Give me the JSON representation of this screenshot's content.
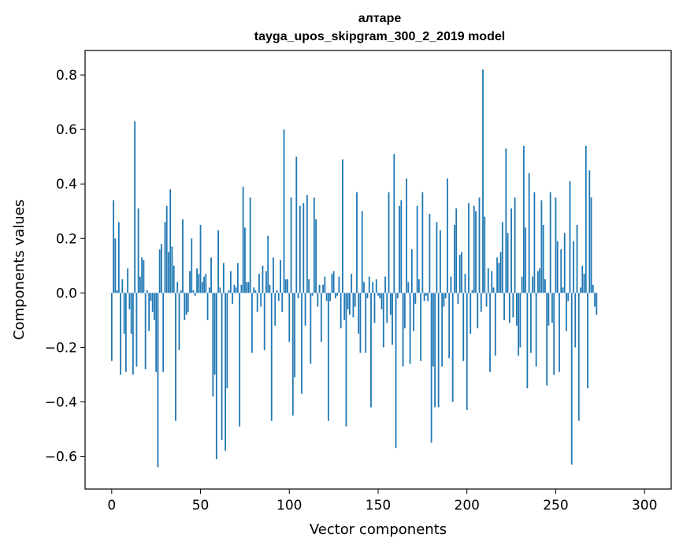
{
  "chart_data": {
    "type": "bar",
    "title": "алтаре",
    "subtitle": "tayga_upos_skipgram_300_2_2019 model",
    "xlabel": "Vector components",
    "ylabel": "Components values",
    "xlim": [
      -15,
      315
    ],
    "ylim": [
      -0.72,
      0.89
    ],
    "xticks": [
      0,
      50,
      100,
      150,
      200,
      250,
      300
    ],
    "yticks": [
      -0.6,
      -0.4,
      -0.2,
      0.0,
      0.2,
      0.4,
      0.6,
      0.8
    ],
    "ytick_labels": [
      "−0.6",
      "−0.4",
      "−0.2",
      "0.0",
      "0.2",
      "0.4",
      "0.6",
      "0.8"
    ],
    "xtick_labels": [
      "0",
      "50",
      "100",
      "150",
      "200",
      "250",
      "300"
    ],
    "bar_color": "#1f77b4",
    "grid": false,
    "values": [
      -0.25,
      0.34,
      0.2,
      0.01,
      0.26,
      -0.3,
      0.05,
      -0.15,
      -0.29,
      0.09,
      -0.06,
      -0.15,
      -0.3,
      0.63,
      -0.27,
      0.31,
      0.06,
      0.13,
      0.12,
      -0.28,
      0.01,
      -0.14,
      -0.03,
      -0.07,
      -0.1,
      -0.29,
      -0.64,
      0.16,
      0.18,
      -0.29,
      0.26,
      0.32,
      0.15,
      0.38,
      0.17,
      0.1,
      -0.47,
      0.04,
      -0.21,
      0.01,
      0.27,
      -0.1,
      -0.08,
      -0.07,
      0.08,
      0.2,
      0.01,
      -0.01,
      0.09,
      0.07,
      0.25,
      0.04,
      0.06,
      0.07,
      -0.1,
      0.02,
      0.13,
      -0.38,
      -0.3,
      -0.61,
      0.23,
      0.02,
      -0.54,
      0.11,
      -0.58,
      -0.35,
      0.01,
      0.08,
      -0.04,
      0.03,
      0.02,
      0.11,
      -0.49,
      0.03,
      0.39,
      0.24,
      0.04,
      0.04,
      0.35,
      -0.22,
      0.02,
      0.01,
      -0.07,
      0.07,
      -0.05,
      0.1,
      -0.21,
      0.08,
      0.21,
      0.03,
      -0.47,
      0.13,
      -0.12,
      0.01,
      -0.03,
      0.12,
      -0.07,
      0.6,
      0.05,
      0.05,
      -0.18,
      0.35,
      -0.45,
      -0.31,
      0.5,
      -0.02,
      0.32,
      -0.37,
      0.33,
      -0.12,
      0.36,
      0.05,
      -0.26,
      -0.01,
      0.35,
      0.27,
      -0.05,
      0.03,
      -0.18,
      0.03,
      0.06,
      -0.03,
      -0.47,
      -0.03,
      0.07,
      0.08,
      -0.02,
      -0.01,
      0.06,
      -0.13,
      0.49,
      -0.1,
      -0.49,
      -0.06,
      -0.08,
      0.07,
      -0.09,
      -0.05,
      0.37,
      -0.15,
      -0.22,
      0.3,
      0.04,
      -0.22,
      -0.02,
      0.06,
      -0.42,
      0.04,
      -0.11,
      0.05,
      -0.01,
      -0.02,
      -0.06,
      -0.2,
      0.06,
      -0.11,
      0.37,
      -0.08,
      -0.19,
      0.51,
      -0.57,
      -0.02,
      0.32,
      0.34,
      -0.27,
      -0.13,
      0.42,
      0.04,
      -0.26,
      0.16,
      -0.14,
      -0.04,
      0.32,
      0.05,
      -0.25,
      0.37,
      -0.03,
      -0.01,
      -0.03,
      0.29,
      -0.55,
      -0.27,
      -0.42,
      0.26,
      -0.42,
      0.23,
      -0.27,
      -0.05,
      -0.02,
      0.42,
      -0.24,
      0.06,
      -0.4,
      0.25,
      0.31,
      -0.04,
      0.14,
      0.15,
      -0.25,
      0.07,
      -0.43,
      0.33,
      -0.15,
      0.01,
      0.32,
      0.3,
      -0.13,
      0.35,
      -0.07,
      0.82,
      0.28,
      -0.05,
      0.09,
      -0.29,
      0.08,
      0.02,
      -0.23,
      0.13,
      0.11,
      0.15,
      0.26,
      -0.1,
      0.53,
      0.22,
      -0.11,
      0.31,
      -0.09,
      0.35,
      -0.12,
      -0.23,
      -0.2,
      0.06,
      0.54,
      0.24,
      -0.35,
      0.44,
      -0.22,
      0.06,
      0.37,
      -0.27,
      0.08,
      0.09,
      0.34,
      0.25,
      0.05,
      -0.34,
      -0.12,
      0.37,
      -0.11,
      -0.3,
      0.35,
      0.19,
      -0.29,
      0.16,
      0.02,
      0.22,
      -0.14,
      -0.03,
      0.41,
      -0.63,
      0.19,
      -0.2,
      0.25,
      -0.47,
      0.02,
      0.1,
      0.07,
      0.54,
      -0.35,
      0.45,
      0.35,
      0.03,
      -0.05,
      -0.08
    ]
  }
}
